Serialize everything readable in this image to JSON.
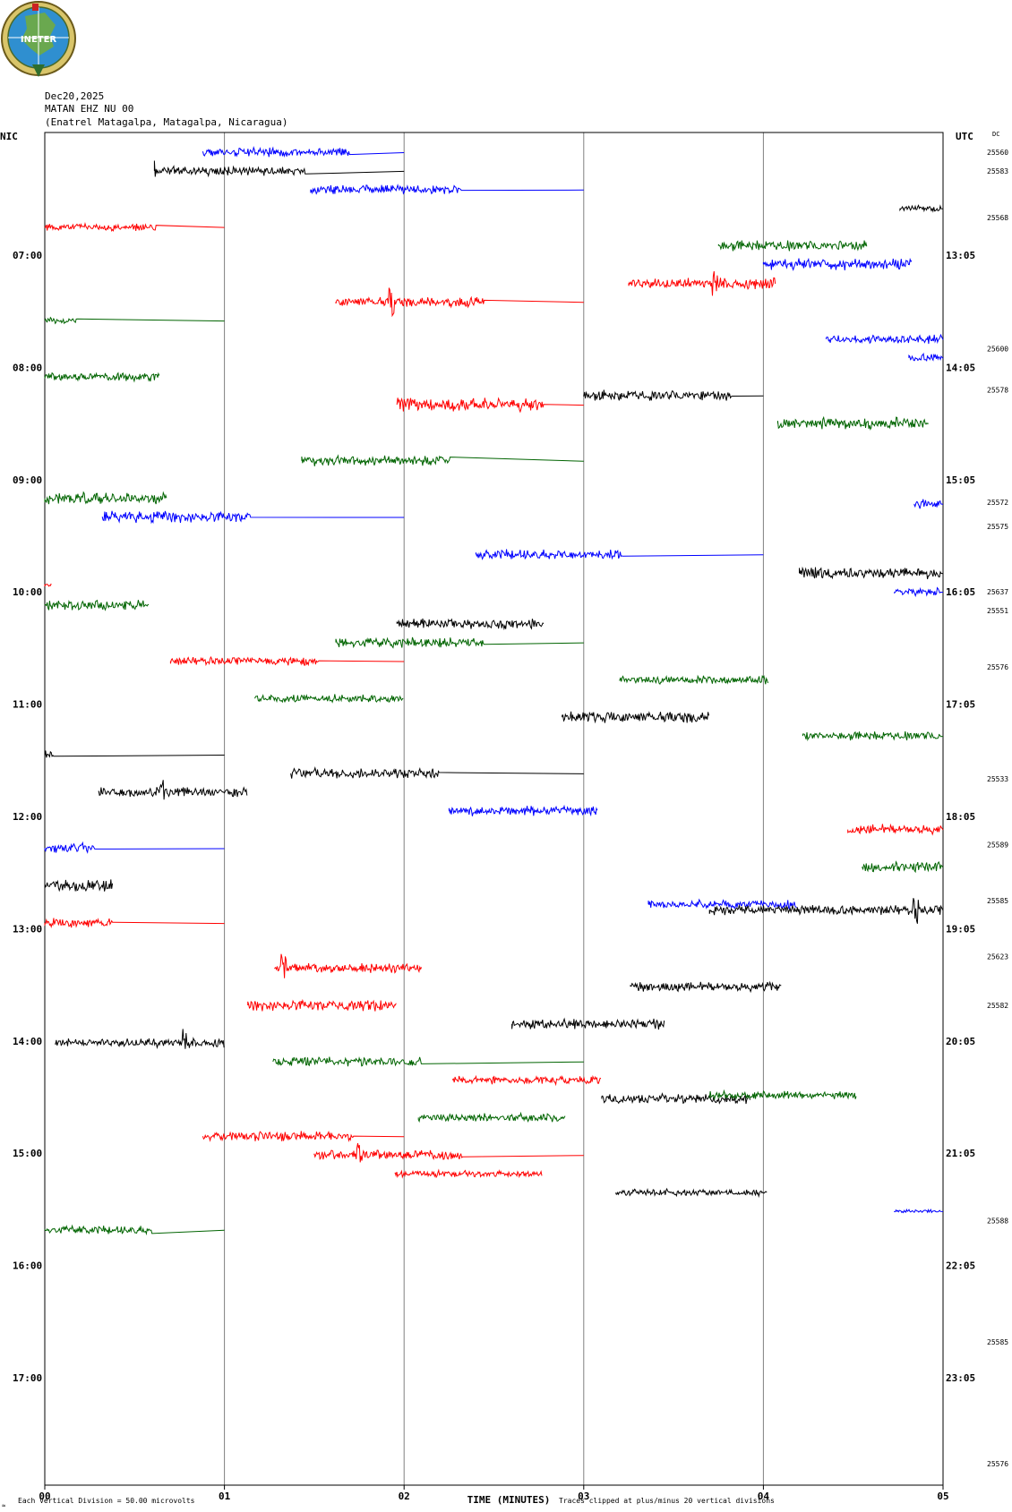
{
  "header": {
    "logo_text": "INETER",
    "date": "Dec20,2025",
    "channel": "MATAN EHZ NU 00",
    "station": "(Enatrel Matagalpa, Matagalpa, Nicaragua)"
  },
  "footer": {
    "scale_note": "Each Vertical Division =   50.00 microvolts",
    "clip_note": "Traces clipped at plus/minus 20 vertical divisions"
  },
  "colors": {
    "black": "#000000",
    "red": "#ff0000",
    "blue": "#0000ff",
    "green": "#006400",
    "grid": "#808080"
  },
  "chart_data": {
    "type": "line",
    "subtype": "helicorder",
    "x_axis": {
      "label": "TIME (MINUTES)",
      "range": [
        0,
        5
      ],
      "ticks": [
        "00",
        "01",
        "02",
        "03",
        "04",
        "05"
      ]
    },
    "left_axis": {
      "label": "NIC",
      "ticks": [
        {
          "row": 5.5,
          "label": "07:00"
        },
        {
          "row": 11.5,
          "label": "08:00"
        },
        {
          "row": 17.5,
          "label": "09:00"
        },
        {
          "row": 23.5,
          "label": "10:00"
        },
        {
          "row": 29.5,
          "label": "11:00"
        },
        {
          "row": 35.5,
          "label": "12:00"
        },
        {
          "row": 41.5,
          "label": "13:00"
        },
        {
          "row": 47.5,
          "label": "14:00"
        },
        {
          "row": 53.5,
          "label": "15:00"
        },
        {
          "row": 59.5,
          "label": "16:00"
        },
        {
          "row": 65.5,
          "label": "17:00"
        }
      ]
    },
    "right_axis": {
      "label": "UTC",
      "dc_label": "DC",
      "ticks": [
        {
          "row": 5.5,
          "label": "13:05"
        },
        {
          "row": 11.5,
          "label": "14:05"
        },
        {
          "row": 17.5,
          "label": "15:05"
        },
        {
          "row": 23.5,
          "label": "16:05"
        },
        {
          "row": 29.5,
          "label": "17:05"
        },
        {
          "row": 35.5,
          "label": "18:05"
        },
        {
          "row": 41.5,
          "label": "19:05"
        },
        {
          "row": 47.5,
          "label": "20:05"
        },
        {
          "row": 53.5,
          "label": "21:05"
        },
        {
          "row": 59.5,
          "label": "22:05"
        },
        {
          "row": 65.5,
          "label": "23:05"
        }
      ],
      "dc_values": [
        {
          "row": 0,
          "value": "25560"
        },
        {
          "row": 1,
          "value": "25583"
        },
        {
          "row": 3.5,
          "value": "25568"
        },
        {
          "row": 10.5,
          "value": "25600"
        },
        {
          "row": 12.7,
          "value": "25578"
        },
        {
          "row": 18.7,
          "value": "25572"
        },
        {
          "row": 20,
          "value": "25575"
        },
        {
          "row": 23.5,
          "value": "25637"
        },
        {
          "row": 24.5,
          "value": "25551"
        },
        {
          "row": 27.5,
          "value": "25576"
        },
        {
          "row": 33.5,
          "value": "25533"
        },
        {
          "row": 37,
          "value": "25589"
        },
        {
          "row": 40,
          "value": "25585"
        },
        {
          "row": 43,
          "value": "25623"
        },
        {
          "row": 45.6,
          "value": "25582"
        },
        {
          "row": 57.1,
          "value": "25588"
        },
        {
          "row": 63.6,
          "value": "25585"
        },
        {
          "row": 70.1,
          "value": "25576"
        }
      ]
    },
    "rows_total": 71,
    "segments": [
      {
        "row": 0,
        "color": "blue",
        "x0": 0.88,
        "x1": 1.7,
        "xf": 2.0,
        "amp": 0.28,
        "seed": 1
      },
      {
        "row": 1,
        "color": "black",
        "x0": 0.61,
        "x1": 1.45,
        "xf": 2.0,
        "amp": 0.28,
        "seed": 2,
        "spike": 0.61
      },
      {
        "row": 2,
        "color": "blue",
        "x0": 1.48,
        "x1": 2.32,
        "xf": 3.0,
        "amp": 0.28,
        "seed": 3
      },
      {
        "row": 3,
        "color": "black",
        "x0": 4.76,
        "x1": 4.99,
        "xf": 5.0,
        "amp": 0.2,
        "seed": 4
      },
      {
        "row": 4,
        "color": "red",
        "x0": 0.0,
        "x1": 0.62,
        "xf": 1.0,
        "amp": 0.25,
        "seed": 5
      },
      {
        "row": 5,
        "color": "green",
        "x0": 3.75,
        "x1": 4.58,
        "xf": 4.58,
        "amp": 0.3,
        "seed": 6
      },
      {
        "row": 6,
        "color": "blue",
        "x0": 4.0,
        "x1": 4.83,
        "xf": 4.83,
        "amp": 0.35,
        "seed": 7
      },
      {
        "row": 7,
        "color": "red",
        "x0": 3.25,
        "x1": 4.07,
        "xf": 4.07,
        "amp": 0.35,
        "seed": 8,
        "spike": 3.73
      },
      {
        "row": 8,
        "color": "red",
        "x0": 1.62,
        "x1": 2.45,
        "xf": 3.0,
        "amp": 0.3,
        "seed": 9,
        "spike": 1.93
      },
      {
        "row": 9,
        "color": "green",
        "x0": 0.0,
        "x1": 0.18,
        "xf": 1.0,
        "amp": 0.2,
        "seed": 10
      },
      {
        "row": 10,
        "color": "blue",
        "x0": 4.35,
        "x1": 4.99,
        "xf": 5.0,
        "amp": 0.25,
        "seed": 11
      },
      {
        "row": 11,
        "color": "blue",
        "x0": 4.81,
        "x1": 4.99,
        "xf": 5.0,
        "amp": 0.25,
        "seed": 12
      },
      {
        "row": 12,
        "color": "green",
        "x0": 0.0,
        "x1": 0.64,
        "xf": 0.64,
        "amp": 0.25,
        "seed": 13
      },
      {
        "row": 13,
        "color": "black",
        "x0": 3.0,
        "x1": 3.83,
        "xf": 4.0,
        "amp": 0.3,
        "seed": 14
      },
      {
        "row": 13.5,
        "color": "red",
        "x0": 1.96,
        "x1": 2.78,
        "xf": 3.0,
        "amp": 0.4,
        "seed": 15
      },
      {
        "row": 14.5,
        "color": "green",
        "x0": 4.08,
        "x1": 4.92,
        "xf": 4.92,
        "amp": 0.35,
        "seed": 16
      },
      {
        "row": 16.5,
        "color": "green",
        "x0": 1.43,
        "x1": 2.26,
        "xf": 3.0,
        "amp": 0.3,
        "seed": 17
      },
      {
        "row": 18.5,
        "color": "green",
        "x0": 0.0,
        "x1": 0.68,
        "xf": 0.68,
        "amp": 0.35,
        "seed": 18
      },
      {
        "row": 18.8,
        "color": "blue",
        "x0": 4.84,
        "x1": 4.99,
        "xf": 5.0,
        "amp": 0.3,
        "seed": 19
      },
      {
        "row": 19.5,
        "color": "blue",
        "x0": 0.32,
        "x1": 1.15,
        "xf": 2.0,
        "amp": 0.35,
        "seed": 20
      },
      {
        "row": 21.5,
        "color": "blue",
        "x0": 2.4,
        "x1": 3.22,
        "xf": 4.0,
        "amp": 0.3,
        "seed": 21
      },
      {
        "row": 22.5,
        "color": "black",
        "x0": 4.2,
        "x1": 4.99,
        "xf": 5.0,
        "amp": 0.35,
        "seed": 22
      },
      {
        "row": 23.1,
        "color": "red",
        "x0": 0.0,
        "x1": 0.04,
        "xf": 0.04,
        "amp": 0.15,
        "seed": 23
      },
      {
        "row": 23.5,
        "color": "blue",
        "x0": 4.73,
        "x1": 4.99,
        "xf": 5.0,
        "amp": 0.25,
        "seed": 24
      },
      {
        "row": 24.2,
        "color": "green",
        "x0": 0.0,
        "x1": 0.58,
        "xf": 0.58,
        "amp": 0.3,
        "seed": 25
      },
      {
        "row": 25.2,
        "color": "black",
        "x0": 1.96,
        "x1": 2.78,
        "xf": 2.78,
        "amp": 0.3,
        "seed": 26
      },
      {
        "row": 26.2,
        "color": "green",
        "x0": 1.62,
        "x1": 2.45,
        "xf": 3.0,
        "amp": 0.3,
        "seed": 27
      },
      {
        "row": 27.2,
        "color": "red",
        "x0": 0.7,
        "x1": 1.53,
        "xf": 2.0,
        "amp": 0.25,
        "seed": 28
      },
      {
        "row": 28.2,
        "color": "green",
        "x0": 3.2,
        "x1": 4.03,
        "xf": 4.03,
        "amp": 0.25,
        "seed": 29
      },
      {
        "row": 29.2,
        "color": "green",
        "x0": 1.17,
        "x1": 2.0,
        "xf": 2.0,
        "amp": 0.25,
        "seed": 30
      },
      {
        "row": 30.2,
        "color": "black",
        "x0": 2.88,
        "x1": 3.7,
        "xf": 3.7,
        "amp": 0.35,
        "seed": 31
      },
      {
        "row": 31.2,
        "color": "green",
        "x0": 4.22,
        "x1": 4.99,
        "xf": 5.0,
        "amp": 0.25,
        "seed": 32
      },
      {
        "row": 32.2,
        "color": "black",
        "x0": 0.0,
        "x1": 0.05,
        "xf": 1.0,
        "amp": 0.3,
        "seed": 33
      },
      {
        "row": 33.2,
        "color": "black",
        "x0": 1.37,
        "x1": 2.2,
        "xf": 3.0,
        "amp": 0.3,
        "seed": 34
      },
      {
        "row": 34.2,
        "color": "black",
        "x0": 0.3,
        "x1": 1.13,
        "xf": 1.13,
        "amp": 0.3,
        "seed": 35,
        "spike": 0.65
      },
      {
        "row": 35.2,
        "color": "blue",
        "x0": 2.25,
        "x1": 3.08,
        "xf": 3.08,
        "amp": 0.3,
        "seed": 36
      },
      {
        "row": 36.2,
        "color": "red",
        "x0": 4.47,
        "x1": 4.99,
        "xf": 5.0,
        "amp": 0.3,
        "seed": 37
      },
      {
        "row": 37.2,
        "color": "blue",
        "x0": 0.0,
        "x1": 0.28,
        "xf": 1.0,
        "amp": 0.3,
        "seed": 38
      },
      {
        "row": 38.2,
        "color": "green",
        "x0": 4.55,
        "x1": 4.99,
        "xf": 5.0,
        "amp": 0.3,
        "seed": 39
      },
      {
        "row": 39.2,
        "color": "black",
        "x0": 0.0,
        "x1": 0.38,
        "xf": 0.38,
        "amp": 0.35,
        "seed": 40
      },
      {
        "row": 40.2,
        "color": "blue",
        "x0": 3.36,
        "x1": 4.19,
        "xf": 4.19,
        "amp": 0.3,
        "seed": 41
      },
      {
        "row": 40.5,
        "color": "black",
        "x0": 3.7,
        "x1": 4.99,
        "xf": 5.0,
        "amp": 0.3,
        "seed": 42,
        "spike": 4.85
      },
      {
        "row": 41.2,
        "color": "red",
        "x0": 0.0,
        "x1": 0.38,
        "xf": 1.0,
        "amp": 0.3,
        "seed": 43
      },
      {
        "row": 43.6,
        "color": "red",
        "x0": 1.28,
        "x1": 2.1,
        "xf": 2.1,
        "amp": 0.3,
        "seed": 44,
        "spike": 1.33
      },
      {
        "row": 44.6,
        "color": "black",
        "x0": 3.26,
        "x1": 4.1,
        "xf": 4.1,
        "amp": 0.3,
        "seed": 45
      },
      {
        "row": 45.6,
        "color": "red",
        "x0": 1.13,
        "x1": 1.96,
        "xf": 1.96,
        "amp": 0.35,
        "seed": 46
      },
      {
        "row": 46.6,
        "color": "black",
        "x0": 2.6,
        "x1": 3.45,
        "xf": 3.45,
        "amp": 0.3,
        "seed": 47
      },
      {
        "row": 47.6,
        "color": "black",
        "x0": 0.06,
        "x1": 1.0,
        "xf": 1.0,
        "amp": 0.3,
        "seed": 48,
        "spike": 0.78
      },
      {
        "row": 48.6,
        "color": "green",
        "x0": 1.27,
        "x1": 2.1,
        "xf": 3.0,
        "amp": 0.3,
        "seed": 49
      },
      {
        "row": 49.6,
        "color": "red",
        "x0": 2.27,
        "x1": 3.1,
        "xf": 3.1,
        "amp": 0.25,
        "seed": 50
      },
      {
        "row": 50.6,
        "color": "black",
        "x0": 3.1,
        "x1": 3.93,
        "xf": 3.93,
        "amp": 0.3,
        "seed": 51
      },
      {
        "row": 50.4,
        "color": "green",
        "x0": 3.7,
        "x1": 4.52,
        "xf": 4.52,
        "amp": 0.25,
        "seed": 52
      },
      {
        "row": 51.6,
        "color": "green",
        "x0": 2.08,
        "x1": 2.9,
        "xf": 2.9,
        "amp": 0.25,
        "seed": 53
      },
      {
        "row": 52.6,
        "color": "red",
        "x0": 0.88,
        "x1": 1.72,
        "xf": 2.0,
        "amp": 0.3,
        "seed": 54
      },
      {
        "row": 53.6,
        "color": "red",
        "x0": 1.5,
        "x1": 2.33,
        "xf": 3.0,
        "amp": 0.3,
        "seed": 55,
        "spike": 1.75
      },
      {
        "row": 54.6,
        "color": "red",
        "x0": 1.95,
        "x1": 2.77,
        "xf": 2.77,
        "amp": 0.2,
        "seed": 56
      },
      {
        "row": 55.6,
        "color": "black",
        "x0": 3.18,
        "x1": 4.02,
        "xf": 4.02,
        "amp": 0.2,
        "seed": 57
      },
      {
        "row": 56.6,
        "color": "blue",
        "x0": 4.73,
        "x1": 4.99,
        "xf": 5.0,
        "amp": 0.1,
        "seed": 58
      },
      {
        "row": 57.6,
        "color": "green",
        "x0": 0.0,
        "x1": 0.6,
        "xf": 1.0,
        "amp": 0.25,
        "seed": 59
      }
    ]
  }
}
